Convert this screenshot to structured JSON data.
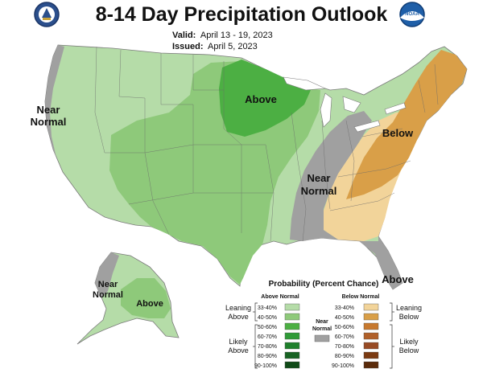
{
  "title": "8-14 Day Precipitation Outlook",
  "valid_label": "Valid:",
  "valid_dates": "April 13 - 19, 2023",
  "issued_label": "Issued:",
  "issued_date": "April 5, 2023",
  "logos": {
    "left": "doc-seal",
    "right": "noaa-logo",
    "noaa_text": "NOAA"
  },
  "map_labels": {
    "west_near_normal_1": "Near",
    "west_near_normal_2": "Normal",
    "midwest": "Above",
    "northeast": "Below",
    "east_near_normal_1": "Near",
    "east_near_normal_2": "Normal",
    "florida": "Above",
    "alaska_near_1": "Near",
    "alaska_near_2": "Normal",
    "alaska_above": "Above"
  },
  "legend": {
    "title": "Probability (Percent Chance)",
    "above_header": "Above Normal",
    "below_header": "Below Normal",
    "near_1": "Near",
    "near_2": "Normal",
    "above_rows": [
      {
        "range": "33-40%",
        "color": "#b5dca8"
      },
      {
        "range": "40-50%",
        "color": "#8ec97a"
      },
      {
        "range": "50-60%",
        "color": "#4caf43"
      },
      {
        "range": "60-70%",
        "color": "#2f9a37"
      },
      {
        "range": "70-80%",
        "color": "#1e7f2b"
      },
      {
        "range": "80-90%",
        "color": "#176323"
      },
      {
        "range": "90-100%",
        "color": "#0f4a17"
      }
    ],
    "below_rows": [
      {
        "range": "33-40%",
        "color": "#f2d49a"
      },
      {
        "range": "40-50%",
        "color": "#d99f48"
      },
      {
        "range": "50-60%",
        "color": "#c7792f"
      },
      {
        "range": "60-70%",
        "color": "#b0602a"
      },
      {
        "range": "70-80%",
        "color": "#974a24"
      },
      {
        "range": "80-90%",
        "color": "#7b3a12"
      },
      {
        "range": "90-100%",
        "color": "#5a2a0a"
      }
    ],
    "near_color": "#a0a0a0",
    "leaning_above_1": "Leaning",
    "leaning_above_2": "Above",
    "likely_above_1": "Likely",
    "likely_above_2": "Above",
    "leaning_below_1": "Leaning",
    "leaning_below_2": "Below",
    "likely_below_1": "Likely",
    "likely_below_2": "Below"
  },
  "colors": {
    "above_light": "#b5dca8",
    "above_med": "#8ec97a",
    "above_dark": "#4caf43",
    "below_light": "#f2d49a",
    "below_med": "#d99f48",
    "near_normal": "#a0a0a0",
    "water": "#ffffff",
    "borders": "#6a6a6a"
  }
}
